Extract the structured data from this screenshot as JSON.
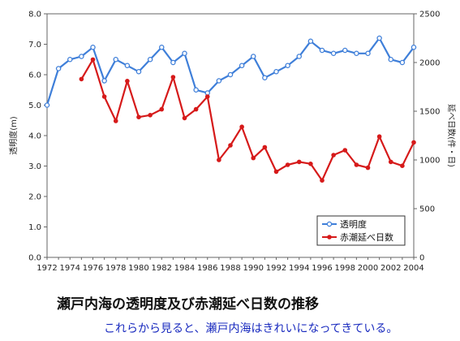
{
  "caption": {
    "title": "瀬戸内海の透明度及び赤潮延べ日数の推移",
    "subtitle": "これらから見ると、瀬戸内海はきれいになってきている。"
  },
  "chart_data": {
    "type": "line",
    "ylabel_left": "透明度(m)",
    "ylabel_right": "延べ日数(件・日)",
    "ylim_left": [
      0,
      8
    ],
    "ylim_right": [
      0,
      2500
    ],
    "xlim": [
      1972,
      2004
    ],
    "yticks_left": [
      "0.0",
      "1.0",
      "2.0",
      "3.0",
      "4.0",
      "5.0",
      "6.0",
      "7.0",
      "8.0"
    ],
    "yticks_right": [
      "0",
      "500",
      "1000",
      "1500",
      "2000",
      "2500"
    ],
    "xticks": [
      "1972",
      "1974",
      "1976",
      "1978",
      "1980",
      "1982",
      "1984",
      "1986",
      "1988",
      "1990",
      "1992",
      "1994",
      "1996",
      "1998",
      "2000",
      "2002",
      "2004"
    ],
    "legend_position": "bottom-right",
    "grid": false,
    "colors": {
      "transparency": "#3f7fd9",
      "red_tide": "#d61a1a"
    },
    "series": [
      {
        "name": "透明度",
        "axis": "left",
        "x": [
          1972,
          1973,
          1974,
          1975,
          1976,
          1977,
          1978,
          1979,
          1980,
          1981,
          1982,
          1983,
          1984,
          1985,
          1986,
          1987,
          1988,
          1989,
          1990,
          1991,
          1992,
          1993,
          1994,
          1995,
          1996,
          1997,
          1998,
          1999,
          2000,
          2001,
          2002,
          2003,
          2004
        ],
        "values": [
          5.0,
          6.2,
          6.5,
          6.6,
          6.9,
          5.8,
          6.5,
          6.3,
          6.1,
          6.5,
          6.9,
          6.4,
          6.7,
          5.5,
          5.4,
          5.8,
          6.0,
          6.3,
          6.6,
          5.9,
          6.1,
          6.3,
          6.6,
          7.1,
          6.8,
          6.7,
          6.8,
          6.7,
          6.7,
          7.2,
          6.5,
          6.4,
          6.9
        ]
      },
      {
        "name": "赤潮延べ日数",
        "axis": "right",
        "x": [
          1975,
          1976,
          1977,
          1978,
          1979,
          1980,
          1981,
          1982,
          1983,
          1984,
          1985,
          1986,
          1987,
          1988,
          1989,
          1990,
          1991,
          1992,
          1993,
          1994,
          1995,
          1996,
          1997,
          1998,
          1999,
          2000,
          2001,
          2002,
          2003,
          2004
        ],
        "values": [
          1830,
          2030,
          1650,
          1400,
          1810,
          1440,
          1460,
          1520,
          1850,
          1430,
          1520,
          1650,
          1000,
          1150,
          1340,
          1020,
          1130,
          880,
          950,
          980,
          960,
          790,
          1050,
          1100,
          950,
          920,
          1240,
          980,
          940,
          1180
        ]
      }
    ]
  }
}
